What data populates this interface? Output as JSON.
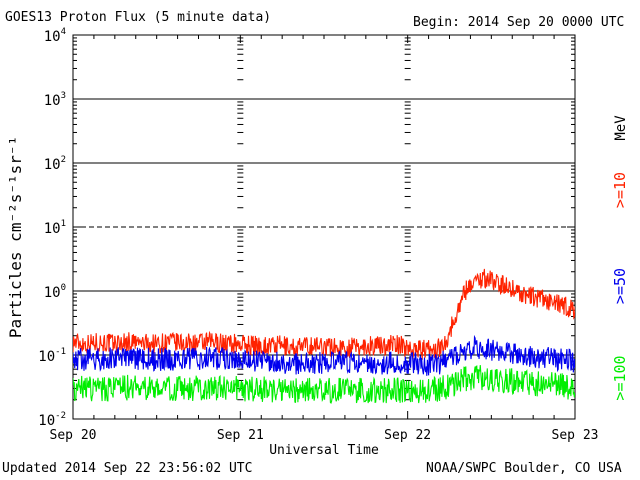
{
  "header": {
    "title": "GOES13 Proton Flux (5 minute data)",
    "begin": "Begin: 2014 Sep 20 0000 UTC"
  },
  "footer": {
    "updated": "Updated 2014 Sep 22 23:56:02 UTC",
    "source": "NOAA/SWPC Boulder, CO USA"
  },
  "chart_data": {
    "type": "line",
    "ylabel": "Particles cm⁻²s⁻¹sr⁻¹",
    "xlabel": "Universal Time",
    "yscale": "log",
    "ylim": [
      0.01,
      10000
    ],
    "xlim": [
      0,
      72
    ],
    "x_unit": "hours since Sep 20 0000 UTC",
    "x_ticks": [
      {
        "x": 0,
        "label": "Sep 20"
      },
      {
        "x": 24,
        "label": "Sep 21"
      },
      {
        "x": 48,
        "label": "Sep 22"
      },
      {
        "x": 72,
        "label": "Sep 23"
      }
    ],
    "y_ticks": [
      {
        "y": 0.01,
        "base": "10",
        "exp": "-2"
      },
      {
        "y": 0.1,
        "base": "10",
        "exp": "-1"
      },
      {
        "y": 1,
        "base": "10",
        "exp": "0"
      },
      {
        "y": 10,
        "base": "10",
        "exp": "1"
      },
      {
        "y": 100,
        "base": "10",
        "exp": "2"
      },
      {
        "y": 1000,
        "base": "10",
        "exp": "3"
      },
      {
        "y": 10000,
        "base": "10",
        "exp": "4"
      }
    ],
    "threshold_lines": [
      {
        "y": 10,
        "style": "dashed"
      },
      {
        "y": 1,
        "style": "solid"
      }
    ],
    "unit_label": "MeV",
    "series": [
      {
        "name": ">=10",
        "color": "#ff2200",
        "x": [
          0,
          2,
          4,
          6,
          8,
          10,
          12,
          14,
          16,
          18,
          20,
          22,
          24,
          26,
          28,
          30,
          32,
          34,
          36,
          38,
          40,
          42,
          44,
          46,
          48,
          50,
          52,
          53,
          54,
          55,
          56,
          57,
          58,
          59,
          60,
          61,
          62,
          63,
          64,
          65,
          66,
          67,
          68,
          69,
          70,
          71,
          72
        ],
        "y": [
          0.16,
          0.15,
          0.16,
          0.15,
          0.16,
          0.15,
          0.15,
          0.16,
          0.15,
          0.15,
          0.16,
          0.15,
          0.15,
          0.14,
          0.14,
          0.14,
          0.13,
          0.14,
          0.14,
          0.13,
          0.13,
          0.14,
          0.14,
          0.15,
          0.13,
          0.12,
          0.12,
          0.14,
          0.22,
          0.45,
          0.9,
          1.3,
          1.5,
          1.6,
          1.5,
          1.3,
          1.2,
          1.1,
          0.95,
          0.85,
          0.8,
          0.75,
          0.7,
          0.65,
          0.6,
          0.55,
          0.5
        ]
      },
      {
        "name": ">=50",
        "color": "#0000ee",
        "x": [
          0,
          4,
          8,
          12,
          16,
          20,
          24,
          28,
          32,
          36,
          40,
          44,
          48,
          50,
          52,
          54,
          56,
          58,
          60,
          62,
          64,
          66,
          68,
          70,
          72
        ],
        "y": [
          0.085,
          0.085,
          0.09,
          0.085,
          0.085,
          0.09,
          0.085,
          0.08,
          0.075,
          0.075,
          0.075,
          0.075,
          0.075,
          0.07,
          0.07,
          0.085,
          0.12,
          0.13,
          0.12,
          0.11,
          0.1,
          0.09,
          0.09,
          0.085,
          0.08
        ]
      },
      {
        "name": ">=100",
        "color": "#00ee00",
        "x": [
          0,
          4,
          8,
          12,
          16,
          20,
          24,
          28,
          32,
          36,
          40,
          44,
          48,
          50,
          52,
          54,
          56,
          58,
          60,
          62,
          64,
          66,
          68,
          70,
          72
        ],
        "y": [
          0.03,
          0.03,
          0.031,
          0.03,
          0.03,
          0.031,
          0.03,
          0.029,
          0.028,
          0.028,
          0.028,
          0.028,
          0.028,
          0.028,
          0.029,
          0.033,
          0.042,
          0.045,
          0.042,
          0.04,
          0.038,
          0.036,
          0.035,
          0.033,
          0.03
        ]
      }
    ]
  }
}
